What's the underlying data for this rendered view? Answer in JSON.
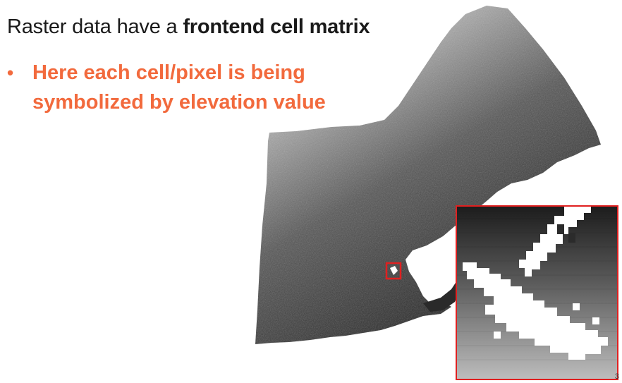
{
  "slide": {
    "title_prefix": "Raster data have a ",
    "title_bold": "frontend cell matrix",
    "bullets": [
      {
        "text": "Here each cell/pixel is being symbolized by elevation value"
      }
    ],
    "page_number": "3"
  },
  "colors": {
    "accent": "#f26a3d",
    "highlight_box": "#e02020",
    "title_text": "#1a1a1a"
  },
  "icons": {
    "bullet": "bullet-dot-icon"
  }
}
